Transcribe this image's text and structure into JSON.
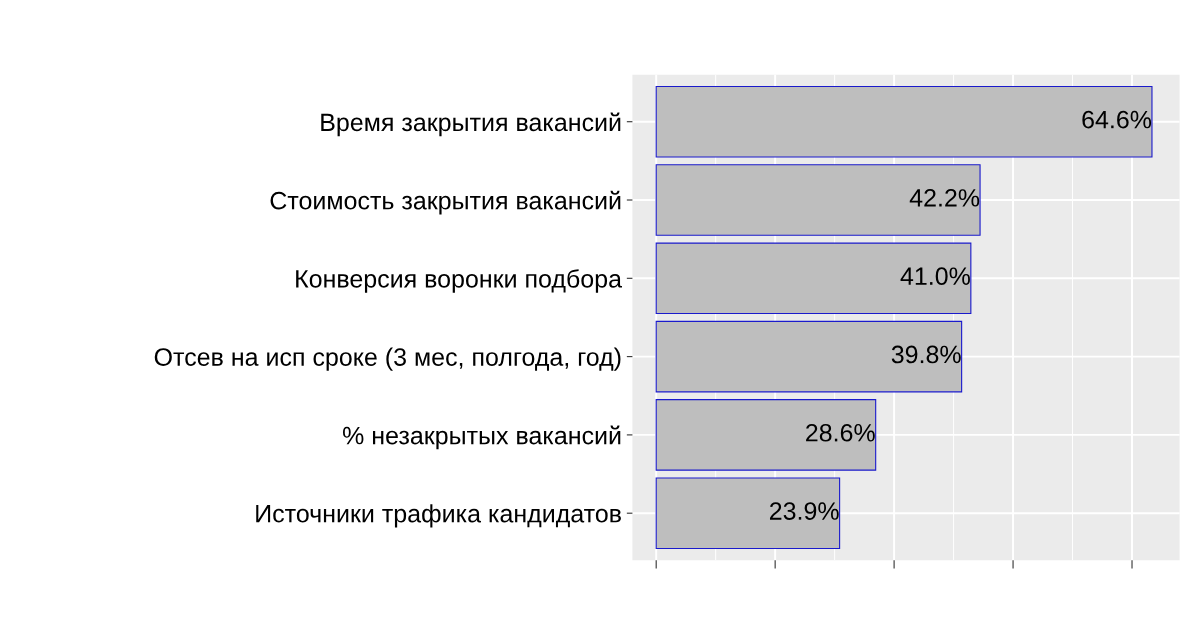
{
  "chart_data": {
    "type": "bar",
    "orientation": "horizontal",
    "categories": [
      "Время закрытия вакансий",
      "Стоимость закрытия вакансий",
      "Конверсия воронки подбора",
      "Отсев на исп сроке (3 мес, полгода, год)",
      "% незакрытых вакансий",
      "Источники трафика кандидатов"
    ],
    "values": [
      64.6,
      42.2,
      41.0,
      39.8,
      28.6,
      23.9
    ],
    "value_labels": [
      "64.6%",
      "42.2%",
      "41.0%",
      "39.8%",
      "28.6%",
      "23.9%"
    ],
    "color": "#bebebe",
    "xlim": [
      -3.1,
      68.2
    ],
    "xticks": [
      {
        "value": 0,
        "label": null
      },
      {
        "value": 15.5,
        "label": null
      },
      {
        "value": 31,
        "label": null
      },
      {
        "value": 46.5,
        "label": null
      },
      {
        "value": 62,
        "label": null
      }
    ],
    "tick_labels": "y",
    "grid": true,
    "legend": false
  }
}
